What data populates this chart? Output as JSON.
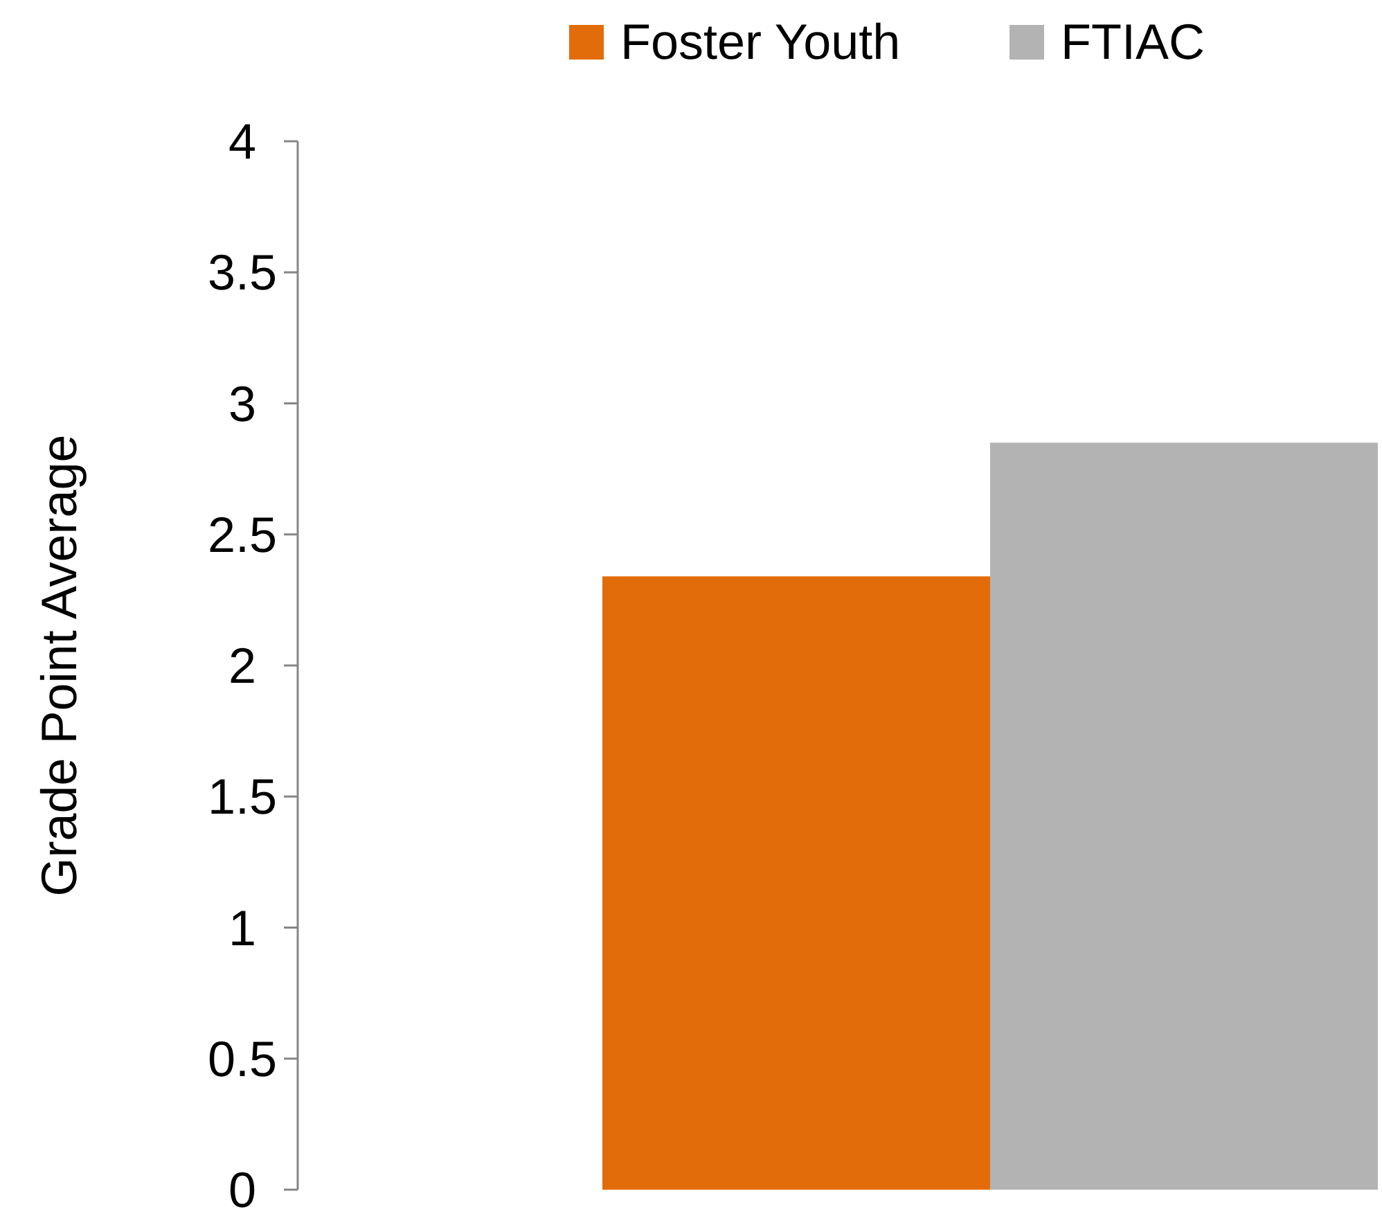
{
  "chart_data": {
    "type": "bar",
    "ylabel": "Grade Point Average",
    "categories": [
      null
    ],
    "series": [
      {
        "name": "Foster Youth",
        "color": "#e36c0a",
        "values": [
          2.34
        ]
      },
      {
        "name": "FTIAC",
        "color": "#b3b3b3",
        "values": [
          2.85
        ]
      }
    ],
    "ylim": [
      0,
      4
    ],
    "yticks": [
      0,
      0.5,
      1,
      1.5,
      2,
      2.5,
      3,
      3.5,
      4
    ],
    "grid": false,
    "legend": "top"
  }
}
